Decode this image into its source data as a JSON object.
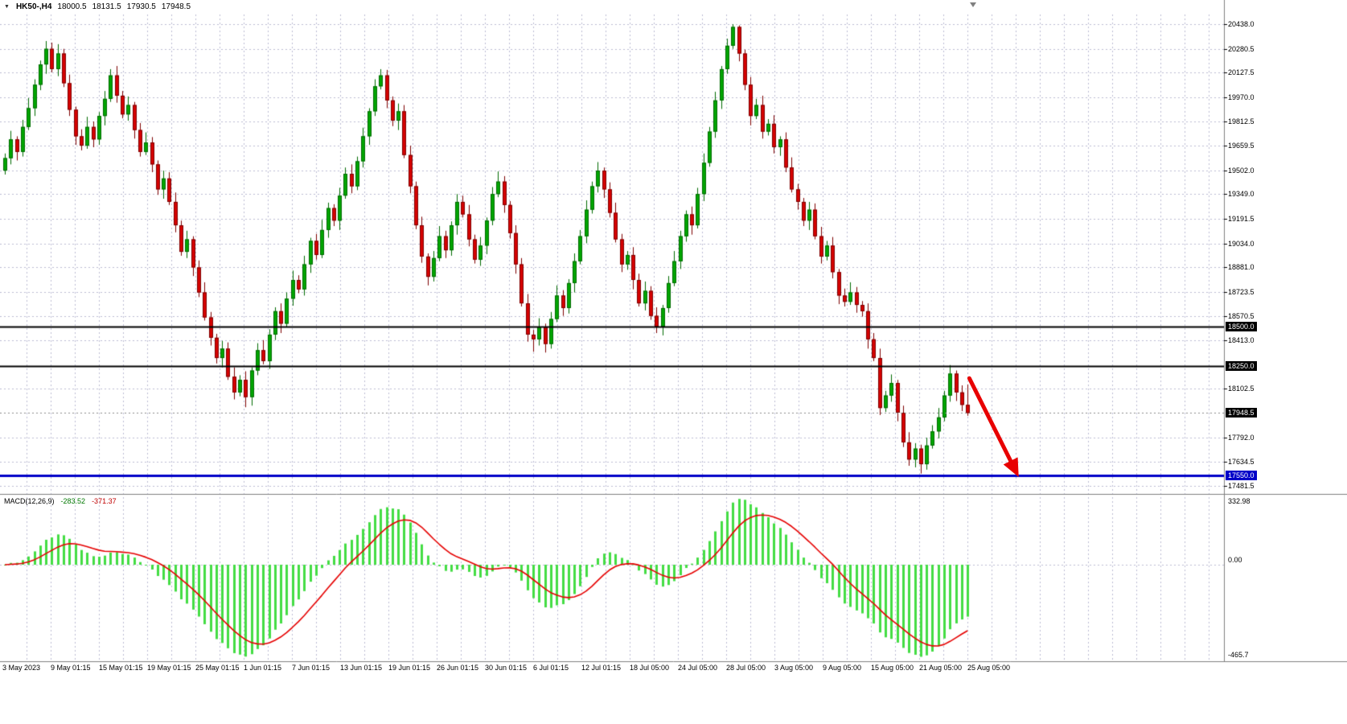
{
  "header": {
    "symbol_period": "HK50-,H4",
    "open": "18000.5",
    "high": "18131.5",
    "low": "17930.5",
    "close": "17948.5",
    "dropdown_icon": "▼"
  },
  "colors": {
    "background": "#ffffff",
    "grid": "#bcbcd4",
    "bull": "#00A600",
    "bull_border": "#006A00",
    "bear": "#D60000",
    "bear_border": "#7E0000",
    "macd_hist": "#44DD44",
    "macd_signal": "#E60000",
    "axis_text": "#000000",
    "separator": "#808080",
    "level_black": "#000000",
    "level_blue": "#0000C8",
    "arrow": "#E80000"
  },
  "chart_data": {
    "type": "candlestick",
    "symbol": "HK50-",
    "timeframe": "H4",
    "price_range": {
      "max": 20500,
      "min": 17440
    },
    "price_axis_labels": [
      "20438.0",
      "20280.5",
      "20127.5",
      "19970.0",
      "19812.5",
      "19659.5",
      "19502.0",
      "19349.0",
      "19191.5",
      "19034.0",
      "18881.0",
      "18723.5",
      "18570.5",
      "18413.0",
      "18102.5",
      "17792.0",
      "17634.5",
      "17481.5"
    ],
    "time_axis_labels": [
      "3 May 2023",
      "9 May 01:15",
      "15 May 01:15",
      "19 May 01:15",
      "25 May 01:15",
      "1 Jun 01:15",
      "7 Jun 01:15",
      "13 Jun 01:15",
      "19 Jun 01:15",
      "26 Jun 01:15",
      "30 Jun 01:15",
      "6 Jul 01:15",
      "12 Jul 01:15",
      "18 Jul 05:00",
      "24 Jul 05:00",
      "28 Jul 05:00",
      "3 Aug 05:00",
      "9 Aug 05:00",
      "15 Aug 05:00",
      "21 Aug 05:00",
      "25 Aug 05:00"
    ],
    "price_lines": [
      {
        "price": 18500,
        "label": "18500.0",
        "line_color": "#000000",
        "line_style": "solid",
        "line_width": 2,
        "badge_bg": "#000000"
      },
      {
        "price": 18250,
        "label": "18250.0",
        "line_color": "#000000",
        "line_style": "solid",
        "line_width": 2,
        "badge_bg": "#000000"
      },
      {
        "price": 17948.5,
        "label": "17948.5",
        "line_color": "#8a8a8a",
        "line_style": "dotted",
        "line_width": 1,
        "badge_bg": "#000000"
      },
      {
        "price": 17550,
        "label": "17550.0",
        "line_color": "#0000C8",
        "line_style": "solid",
        "line_width": 3,
        "badge_bg": "#0000C8"
      }
    ],
    "candles": [
      [
        19500,
        19610,
        19475,
        19580
      ],
      [
        19580,
        19755,
        19540,
        19700
      ],
      [
        19700,
        19720,
        19565,
        19620
      ],
      [
        19620,
        19825,
        19590,
        19780
      ],
      [
        19780,
        19965,
        19760,
        19900
      ],
      [
        19900,
        20085,
        19850,
        20050
      ],
      [
        20050,
        20205,
        20015,
        20180
      ],
      [
        20180,
        20330,
        20120,
        20280
      ],
      [
        20280,
        20320,
        20130,
        20150
      ],
      [
        20150,
        20310,
        20105,
        20250
      ],
      [
        20250,
        20280,
        20035,
        20060
      ],
      [
        20060,
        20115,
        19850,
        19890
      ],
      [
        19890,
        19910,
        19665,
        19720
      ],
      [
        19720,
        19765,
        19630,
        19660
      ],
      [
        19660,
        19845,
        19640,
        19780
      ],
      [
        19780,
        19815,
        19650,
        19700
      ],
      [
        19700,
        19875,
        19665,
        19850
      ],
      [
        19850,
        20010,
        19790,
        19960
      ],
      [
        19960,
        20150,
        19940,
        20110
      ],
      [
        20110,
        20170,
        19935,
        19980
      ],
      [
        19980,
        20010,
        19835,
        19860
      ],
      [
        19860,
        19975,
        19820,
        19920
      ],
      [
        19920,
        19940,
        19705,
        19760
      ],
      [
        19760,
        19805,
        19590,
        19620
      ],
      [
        19620,
        19745,
        19600,
        19680
      ],
      [
        19680,
        19715,
        19490,
        19540
      ],
      [
        19540,
        19565,
        19345,
        19380
      ],
      [
        19380,
        19500,
        19320,
        19450
      ],
      [
        19450,
        19490,
        19280,
        19300
      ],
      [
        19300,
        19360,
        19105,
        19150
      ],
      [
        19150,
        19180,
        18955,
        18980
      ],
      [
        18980,
        19115,
        18940,
        19060
      ],
      [
        19060,
        19080,
        18825,
        18880
      ],
      [
        18880,
        18925,
        18690,
        18720
      ],
      [
        18720,
        18785,
        18540,
        18560
      ],
      [
        18560,
        18595,
        18380,
        18430
      ],
      [
        18430,
        18455,
        18265,
        18300
      ],
      [
        18300,
        18410,
        18240,
        18360
      ],
      [
        18360,
        18400,
        18160,
        18180
      ],
      [
        18180,
        18240,
        18035,
        18080
      ],
      [
        18080,
        18190,
        18055,
        18160
      ],
      [
        18160,
        18215,
        17985,
        18050
      ],
      [
        18050,
        18240,
        17995,
        18220
      ],
      [
        18220,
        18395,
        18190,
        18350
      ],
      [
        18350,
        18415,
        18260,
        18280
      ],
      [
        18280,
        18485,
        18230,
        18450
      ],
      [
        18450,
        18625,
        18415,
        18600
      ],
      [
        18600,
        18650,
        18460,
        18520
      ],
      [
        18520,
        18720,
        18500,
        18680
      ],
      [
        18680,
        18860,
        18635,
        18800
      ],
      [
        18800,
        18830,
        18715,
        18740
      ],
      [
        18740,
        18955,
        18700,
        18900
      ],
      [
        18900,
        19070,
        18845,
        19050
      ],
      [
        19050,
        19095,
        18930,
        18960
      ],
      [
        18960,
        19185,
        18940,
        19120
      ],
      [
        19120,
        19295,
        19070,
        19260
      ],
      [
        19260,
        19285,
        19145,
        19180
      ],
      [
        19180,
        19390,
        19120,
        19340
      ],
      [
        19340,
        19520,
        19320,
        19480
      ],
      [
        19480,
        19540,
        19355,
        19400
      ],
      [
        19400,
        19590,
        19375,
        19560
      ],
      [
        19560,
        19775,
        19520,
        19720
      ],
      [
        19720,
        19900,
        19665,
        19880
      ],
      [
        19880,
        20085,
        19850,
        20040
      ],
      [
        20040,
        20150,
        20020,
        20110
      ],
      [
        20110,
        20145,
        19900,
        19950
      ],
      [
        19950,
        19975,
        19785,
        19820
      ],
      [
        19820,
        19930,
        19760,
        19880
      ],
      [
        19880,
        19920,
        19580,
        19600
      ],
      [
        19600,
        19660,
        19355,
        19400
      ],
      [
        19400,
        19430,
        19125,
        19150
      ],
      [
        19150,
        19205,
        18910,
        18950
      ],
      [
        18950,
        18970,
        18765,
        18820
      ],
      [
        18820,
        18985,
        18790,
        18940
      ],
      [
        18940,
        19145,
        18920,
        19080
      ],
      [
        19080,
        19115,
        18940,
        18990
      ],
      [
        18990,
        19175,
        18955,
        19150
      ],
      [
        19150,
        19350,
        19090,
        19300
      ],
      [
        19300,
        19340,
        19200,
        19220
      ],
      [
        19220,
        19280,
        19015,
        19060
      ],
      [
        19060,
        19090,
        18905,
        18930
      ],
      [
        18930,
        19075,
        18890,
        19020
      ],
      [
        19020,
        19200,
        18965,
        19180
      ],
      [
        19180,
        19395,
        19150,
        19350
      ],
      [
        19350,
        19495,
        19330,
        19430
      ],
      [
        19430,
        19465,
        19230,
        19280
      ],
      [
        19280,
        19305,
        19065,
        19100
      ],
      [
        19100,
        19150,
        18840,
        18900
      ],
      [
        18900,
        18940,
        18630,
        18650
      ],
      [
        18650,
        18710,
        18405,
        18450
      ],
      [
        18450,
        18480,
        18340,
        18420
      ],
      [
        18420,
        18555,
        18380,
        18500
      ],
      [
        18500,
        18520,
        18335,
        18390
      ],
      [
        18390,
        18595,
        18360,
        18550
      ],
      [
        18550,
        18765,
        18530,
        18700
      ],
      [
        18700,
        18735,
        18570,
        18620
      ],
      [
        18620,
        18805,
        18585,
        18780
      ],
      [
        18780,
        18970,
        18720,
        18920
      ],
      [
        18920,
        19120,
        18900,
        19080
      ],
      [
        19080,
        19310,
        19035,
        19250
      ],
      [
        19250,
        19430,
        19225,
        19400
      ],
      [
        19400,
        19555,
        19360,
        19500
      ],
      [
        19500,
        19520,
        19325,
        19380
      ],
      [
        19380,
        19425,
        19200,
        19230
      ],
      [
        19230,
        19295,
        19040,
        19060
      ],
      [
        19060,
        19095,
        18850,
        18900
      ],
      [
        18900,
        18985,
        18865,
        18960
      ],
      [
        18960,
        19010,
        18740,
        18800
      ],
      [
        18800,
        18840,
        18630,
        18650
      ],
      [
        18650,
        18790,
        18605,
        18730
      ],
      [
        18730,
        18760,
        18545,
        18570
      ],
      [
        18570,
        18625,
        18460,
        18500
      ],
      [
        18500,
        18640,
        18445,
        18620
      ],
      [
        18620,
        18825,
        18590,
        18780
      ],
      [
        18780,
        18985,
        18760,
        18920
      ],
      [
        18920,
        19115,
        18870,
        19080
      ],
      [
        19080,
        19245,
        19045,
        19220
      ],
      [
        19220,
        19270,
        19090,
        19150
      ],
      [
        19150,
        19390,
        19130,
        19350
      ],
      [
        19350,
        19610,
        19305,
        19550
      ],
      [
        19550,
        19780,
        19525,
        19750
      ],
      [
        19750,
        20005,
        19710,
        19950
      ],
      [
        19950,
        20170,
        19895,
        20150
      ],
      [
        20150,
        20345,
        20120,
        20300
      ],
      [
        20300,
        20438,
        20280,
        20420
      ],
      [
        20420,
        20430,
        20200,
        20250
      ],
      [
        20250,
        20275,
        20015,
        20050
      ],
      [
        20050,
        20100,
        19790,
        19850
      ],
      [
        19850,
        19960,
        19830,
        19920
      ],
      [
        19920,
        19980,
        19705,
        19750
      ],
      [
        19750,
        19830,
        19725,
        19800
      ],
      [
        19800,
        19855,
        19610,
        19650
      ],
      [
        19650,
        19720,
        19595,
        19700
      ],
      [
        19700,
        19745,
        19490,
        19520
      ],
      [
        19520,
        19585,
        19360,
        19380
      ],
      [
        19380,
        19415,
        19250,
        19300
      ],
      [
        19300,
        19325,
        19145,
        19180
      ],
      [
        19180,
        19300,
        19120,
        19250
      ],
      [
        19250,
        19290,
        19060,
        19080
      ],
      [
        19080,
        19140,
        18905,
        18950
      ],
      [
        18950,
        19050,
        18925,
        19020
      ],
      [
        19020,
        19075,
        18810,
        18850
      ],
      [
        18850,
        18870,
        18645,
        18700
      ],
      [
        18700,
        18745,
        18630,
        18660
      ],
      [
        18660,
        18785,
        18640,
        18720
      ],
      [
        18720,
        18755,
        18590,
        18640
      ],
      [
        18640,
        18665,
        18565,
        18600
      ],
      [
        18600,
        18650,
        18360,
        18420
      ],
      [
        18420,
        18460,
        18280,
        18300
      ],
      [
        18300,
        18360,
        17935,
        17980
      ],
      [
        17980,
        18090,
        17955,
        18060
      ],
      [
        18060,
        18195,
        18020,
        18140
      ],
      [
        18140,
        18160,
        17895,
        17950
      ],
      [
        17950,
        17995,
        17730,
        17760
      ],
      [
        17760,
        17825,
        17610,
        17650
      ],
      [
        17650,
        17755,
        17600,
        17720
      ],
      [
        17720,
        17745,
        17560,
        17620
      ],
      [
        17620,
        17790,
        17585,
        17740
      ],
      [
        17740,
        17870,
        17720,
        17830
      ],
      [
        17830,
        17980,
        17785,
        17920
      ],
      [
        17920,
        18090,
        17895,
        18060
      ],
      [
        18060,
        18255,
        18020,
        18200
      ],
      [
        18200,
        18220,
        18025,
        18080
      ],
      [
        18080,
        18125,
        17960,
        18000
      ],
      [
        18000,
        18131,
        17930,
        17948
      ]
    ],
    "macd": {
      "label": "MACD(12,26,9)",
      "params": [
        12,
        26,
        9
      ],
      "value_main": "-283.52",
      "value_signal": "-371.37",
      "axis_labels": [
        "332.98",
        "0.00",
        "-465.7"
      ],
      "scale_max": 332.98,
      "scale_min": -465.7,
      "range": {
        "max": 350,
        "min": -480
      }
    },
    "annotation_arrow": {
      "from": {
        "bar": 164.3,
        "price": 18170
      },
      "to": {
        "bar": 172.3,
        "price": 17568
      }
    }
  }
}
